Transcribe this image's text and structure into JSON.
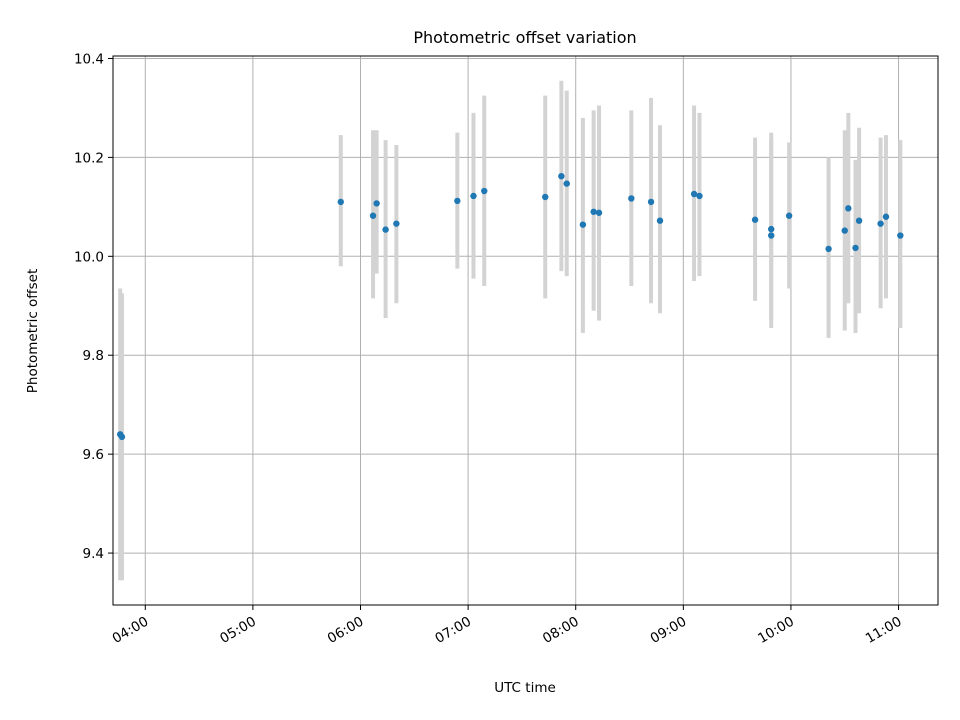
{
  "chart_data": {
    "type": "scatter",
    "title": "Photometric offset variation",
    "xlabel": "UTC time",
    "ylabel": "Photometric offset",
    "xlim": [
      "03:42",
      "11:22"
    ],
    "ylim": [
      9.295,
      10.405
    ],
    "xticks": [
      "04:00",
      "05:00",
      "06:00",
      "07:00",
      "08:00",
      "09:00",
      "10:00",
      "11:00"
    ],
    "yticks": [
      9.4,
      9.6,
      9.8,
      10.0,
      10.2,
      10.4
    ],
    "ytick_labels": [
      "9.4",
      "9.6",
      "9.8",
      "10.0",
      "10.2",
      "10.4"
    ],
    "grid": true,
    "marker_color": "#1f77b4",
    "errorbar_color": "#d3d3d3",
    "points": [
      {
        "x": "03:46",
        "y": 9.64,
        "ylow": 9.345,
        "yhigh": 9.935
      },
      {
        "x": "03:47",
        "y": 9.635,
        "ylow": 9.345,
        "yhigh": 9.925
      },
      {
        "x": "05:49",
        "y": 10.11,
        "ylow": 9.98,
        "yhigh": 10.245
      },
      {
        "x": "06:07",
        "y": 10.082,
        "ylow": 9.915,
        "yhigh": 10.255
      },
      {
        "x": "06:09",
        "y": 10.107,
        "ylow": 9.965,
        "yhigh": 10.255
      },
      {
        "x": "06:14",
        "y": 10.054,
        "ylow": 9.875,
        "yhigh": 10.235
      },
      {
        "x": "06:20",
        "y": 10.066,
        "ylow": 9.905,
        "yhigh": 10.225
      },
      {
        "x": "06:54",
        "y": 10.112,
        "ylow": 9.975,
        "yhigh": 10.25
      },
      {
        "x": "07:03",
        "y": 10.122,
        "ylow": 9.955,
        "yhigh": 10.29
      },
      {
        "x": "07:09",
        "y": 10.132,
        "ylow": 9.94,
        "yhigh": 10.325
      },
      {
        "x": "07:43",
        "y": 10.12,
        "ylow": 9.915,
        "yhigh": 10.325
      },
      {
        "x": "07:52",
        "y": 10.162,
        "ylow": 9.97,
        "yhigh": 10.355
      },
      {
        "x": "07:55",
        "y": 10.147,
        "ylow": 9.96,
        "yhigh": 10.335
      },
      {
        "x": "08:04",
        "y": 10.064,
        "ylow": 9.845,
        "yhigh": 10.28
      },
      {
        "x": "08:10",
        "y": 10.09,
        "ylow": 9.89,
        "yhigh": 10.295
      },
      {
        "x": "08:13",
        "y": 10.088,
        "ylow": 9.87,
        "yhigh": 10.305
      },
      {
        "x": "08:31",
        "y": 10.117,
        "ylow": 9.94,
        "yhigh": 10.295
      },
      {
        "x": "08:42",
        "y": 10.11,
        "ylow": 9.905,
        "yhigh": 10.32
      },
      {
        "x": "08:47",
        "y": 10.072,
        "ylow": 9.885,
        "yhigh": 10.265
      },
      {
        "x": "09:06",
        "y": 10.126,
        "ylow": 9.95,
        "yhigh": 10.305
      },
      {
        "x": "09:09",
        "y": 10.122,
        "ylow": 9.96,
        "yhigh": 10.29
      },
      {
        "x": "09:40",
        "y": 10.074,
        "ylow": 9.91,
        "yhigh": 10.24
      },
      {
        "x": "09:49",
        "y": 10.055,
        "ylow": 9.87,
        "yhigh": 10.25
      },
      {
        "x": "09:49",
        "y": 10.042,
        "ylow": 9.855,
        "yhigh": 10.235
      },
      {
        "x": "09:59",
        "y": 10.082,
        "ylow": 9.935,
        "yhigh": 10.23
      },
      {
        "x": "10:21",
        "y": 10.015,
        "ylow": 9.835,
        "yhigh": 10.2
      },
      {
        "x": "10:30",
        "y": 10.052,
        "ylow": 9.85,
        "yhigh": 10.255
      },
      {
        "x": "10:32",
        "y": 10.097,
        "ylow": 9.905,
        "yhigh": 10.29
      },
      {
        "x": "10:36",
        "y": 10.017,
        "ylow": 9.845,
        "yhigh": 10.195
      },
      {
        "x": "10:38",
        "y": 10.072,
        "ylow": 9.885,
        "yhigh": 10.26
      },
      {
        "x": "10:50",
        "y": 10.066,
        "ylow": 9.895,
        "yhigh": 10.24
      },
      {
        "x": "10:53",
        "y": 10.08,
        "ylow": 9.915,
        "yhigh": 10.245
      },
      {
        "x": "11:01",
        "y": 10.042,
        "ylow": 9.855,
        "yhigh": 10.235
      }
    ]
  }
}
